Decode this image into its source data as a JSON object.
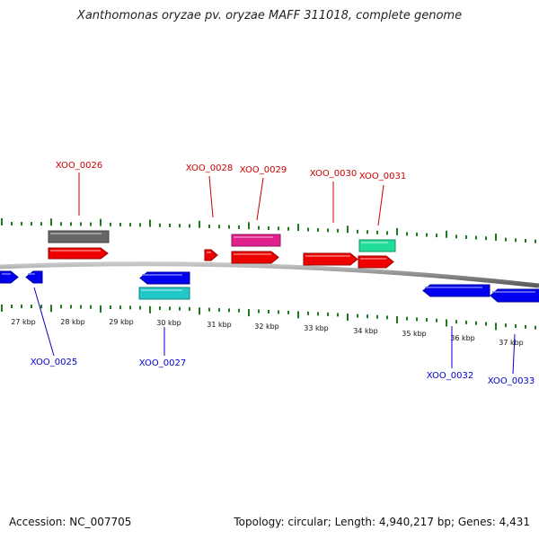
{
  "title": "Xanthomonas oryzae pv. oryzae MAFF 311018, complete genome",
  "footer": {
    "accession": "Accession: NC_007705",
    "summary": "Topology: circular; Length: 4,940,217 bp; Genes: 4,431"
  },
  "colors": {
    "backbone": "#8c8c8c",
    "tick": "#1e7a1e",
    "plus_label": "#cc0000",
    "minus_label": "#0000cc"
  },
  "scale": {
    "unit": "kbp",
    "labels": [
      "27 kbp",
      "28 kbp",
      "29 kbp",
      "30 kbp",
      "31 kbp",
      "32 kbp",
      "33 kbp",
      "34 kbp",
      "35 kbp",
      "36 kbp",
      "37 kbp"
    ]
  },
  "genes": [
    {
      "name": "XOO_0025",
      "strand": "-",
      "color": "#0000ee",
      "labeled": true
    },
    {
      "name": "XOO_0026",
      "strand": "+",
      "color": "#ee0000",
      "labeled": true
    },
    {
      "name": "XOO_0026 (rna)",
      "strand": "+",
      "color": "#666666",
      "labeled": false
    },
    {
      "name": "XOO_0027",
      "strand": "-",
      "color": "#0000ee",
      "labeled": true
    },
    {
      "name": "XOO_0027 (rna)",
      "strand": "-",
      "color": "#22c8c8",
      "labeled": false
    },
    {
      "name": "XOO_0028",
      "strand": "+",
      "color": "#ee0000",
      "labeled": true
    },
    {
      "name": "XOO_0029",
      "strand": "+",
      "color": "#ee0000",
      "labeled": true
    },
    {
      "name": "XOO_0029 (rna)",
      "strand": "+",
      "color": "#e0208c",
      "labeled": false
    },
    {
      "name": "XOO_0030",
      "strand": "+",
      "color": "#ee0000",
      "labeled": true
    },
    {
      "name": "XOO_0031",
      "strand": "+",
      "color": "#ee0000",
      "labeled": true
    },
    {
      "name": "XOO_0031 (rna)",
      "strand": "+",
      "color": "#22dd99",
      "labeled": false
    },
    {
      "name": "XOO_0032",
      "strand": "-",
      "color": "#0000ee",
      "labeled": true
    },
    {
      "name": "XOO_0033",
      "strand": "-",
      "color": "#0000ee",
      "labeled": true
    }
  ]
}
